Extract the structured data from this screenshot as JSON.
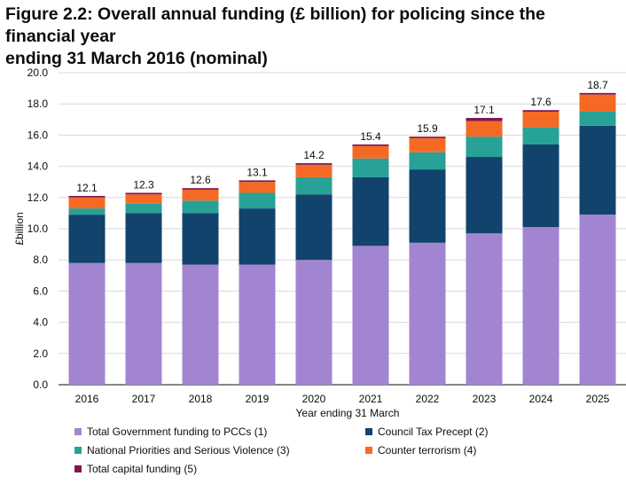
{
  "title_lines": [
    "Figure 2.2: Overall annual funding (£ billion) for policing since the financial year",
    "ending 31 March 2016 (nominal)"
  ],
  "chart_data": {
    "type": "bar",
    "stacked": true,
    "title": "Figure 2.2: Overall annual funding (£ billion) for policing since the financial year ending 31 March 2016 (nominal)",
    "xlabel": "Year ending 31 March",
    "ylabel": "£billion",
    "ylim": [
      0,
      20
    ],
    "yticks": [
      "0.0",
      "2.0",
      "4.0",
      "6.0",
      "8.0",
      "10.0",
      "12.0",
      "14.0",
      "16.0",
      "18.0",
      "20.0"
    ],
    "grid": true,
    "legend_position": "bottom",
    "categories": [
      "2016",
      "2017",
      "2018",
      "2019",
      "2020",
      "2021",
      "2022",
      "2023",
      "2024",
      "2025"
    ],
    "series": [
      {
        "name": "Total Government funding to PCCs (1)",
        "color": "#a285d1",
        "values": [
          7.8,
          7.8,
          7.7,
          7.7,
          8.0,
          8.9,
          9.1,
          9.7,
          10.1,
          10.9
        ]
      },
      {
        "name": "Council Tax Precept (2)",
        "color": "#12436d",
        "values": [
          3.1,
          3.2,
          3.3,
          3.6,
          4.2,
          4.4,
          4.7,
          4.9,
          5.3,
          5.7
        ]
      },
      {
        "name": "National Priorities and Serious Violence (3)",
        "color": "#28a197",
        "values": [
          0.4,
          0.6,
          0.8,
          1.0,
          1.1,
          1.2,
          1.1,
          1.3,
          1.1,
          0.9
        ]
      },
      {
        "name": "Counter terrorism (4)",
        "color": "#f46a25",
        "values": [
          0.7,
          0.6,
          0.7,
          0.7,
          0.8,
          0.8,
          0.9,
          1.0,
          1.0,
          1.1
        ]
      },
      {
        "name": "Total capital funding (5)",
        "color": "#801650",
        "values": [
          0.1,
          0.1,
          0.1,
          0.1,
          0.1,
          0.1,
          0.1,
          0.2,
          0.1,
          0.1
        ]
      }
    ],
    "totals": [
      "12.1",
      "12.3",
      "12.6",
      "13.1",
      "14.2",
      "15.4",
      "15.9",
      "17.1",
      "17.6",
      "18.7"
    ]
  }
}
